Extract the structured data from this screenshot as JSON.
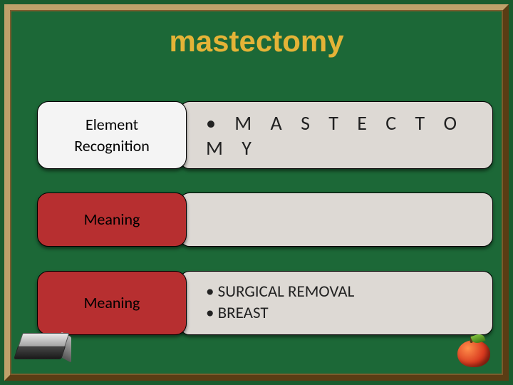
{
  "slide": {
    "title": "mastectomy",
    "title_color": "#e4b337",
    "title_fontsize": 42,
    "background": "#1c6837",
    "frame_color": "#8a6a32",
    "label_bg_white": "#f4f4f4",
    "label_bg_red": "#b72f30",
    "content_bg": "#ddd9d4",
    "rows": [
      {
        "label_lines": [
          "Element",
          "Recognition"
        ],
        "label_style": "white",
        "bullets": [
          "M A S T E C T O M Y"
        ],
        "bullet_style": "lg"
      },
      {
        "label_lines": [
          "Meaning"
        ],
        "label_style": "red",
        "bullets": [],
        "bullet_style": "sm"
      },
      {
        "label_lines": [
          "Meaning"
        ],
        "label_style": "red",
        "bullets": [
          "SURGICAL REMOVAL",
          "BREAST"
        ],
        "bullet_style": "sm"
      }
    ]
  }
}
